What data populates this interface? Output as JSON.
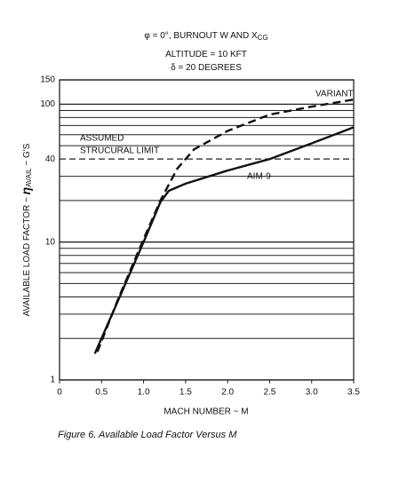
{
  "chart_data": {
    "type": "line",
    "title_lines": [
      [
        {
          "text": "φ = 0°, BURNOUT W AND X"
        },
        {
          "text": "CG",
          "sub": true
        }
      ],
      [
        {
          "text": "ALTITUDE = 10 KFT"
        }
      ],
      [
        {
          "text": "δ = 20 DEGREES"
        }
      ]
    ],
    "x_label": "MACH NUMBER ~ M",
    "y_label": [
      {
        "text": "AVAILABLE LOAD FACTOR ~ "
      },
      {
        "text": "η",
        "big": true
      },
      {
        "text": "AVAIL",
        "sub": true
      },
      {
        "text": " ~ G'S"
      }
    ],
    "caption": "Figure 6.   Available Load Factor Versus M",
    "log_y": true,
    "xlim": [
      0,
      3.5
    ],
    "xticks": [
      0,
      0.5,
      {
        "value": 1,
        "label": "1.0"
      },
      1.5,
      {
        "value": 2,
        "label": "2.0"
      },
      2.5,
      {
        "value": 3,
        "label": "3.0"
      },
      3.5
    ],
    "ylim": [
      1,
      150
    ],
    "yticks": [
      1,
      10,
      40,
      100,
      150
    ],
    "minor_yticks": [
      2,
      3,
      4,
      5,
      6,
      7,
      8,
      9,
      20,
      30,
      50,
      60,
      70,
      80,
      90
    ],
    "structural_limit": {
      "value": 40,
      "label": [
        "ASSUMED",
        "STRUCURAL LIMIT"
      ]
    },
    "series": [
      {
        "name": "AIM-9",
        "color": "#111111",
        "dash": false,
        "x": [
          0.42,
          0.7,
          1.0,
          1.2,
          1.3,
          1.5,
          2.0,
          2.5,
          3.0,
          3.5
        ],
        "values": [
          1.55,
          3.8,
          10,
          19.5,
          23.5,
          26.5,
          33,
          40,
          52,
          68
        ]
      },
      {
        "name": "VARIANT",
        "color": "#111111",
        "dash": true,
        "x": [
          0.45,
          0.7,
          1.0,
          1.2,
          1.4,
          1.6,
          2.0,
          2.5,
          3.0,
          3.5
        ],
        "values": [
          1.6,
          3.9,
          10.5,
          20,
          34,
          47,
          64,
          84,
          96,
          108
        ]
      }
    ]
  }
}
